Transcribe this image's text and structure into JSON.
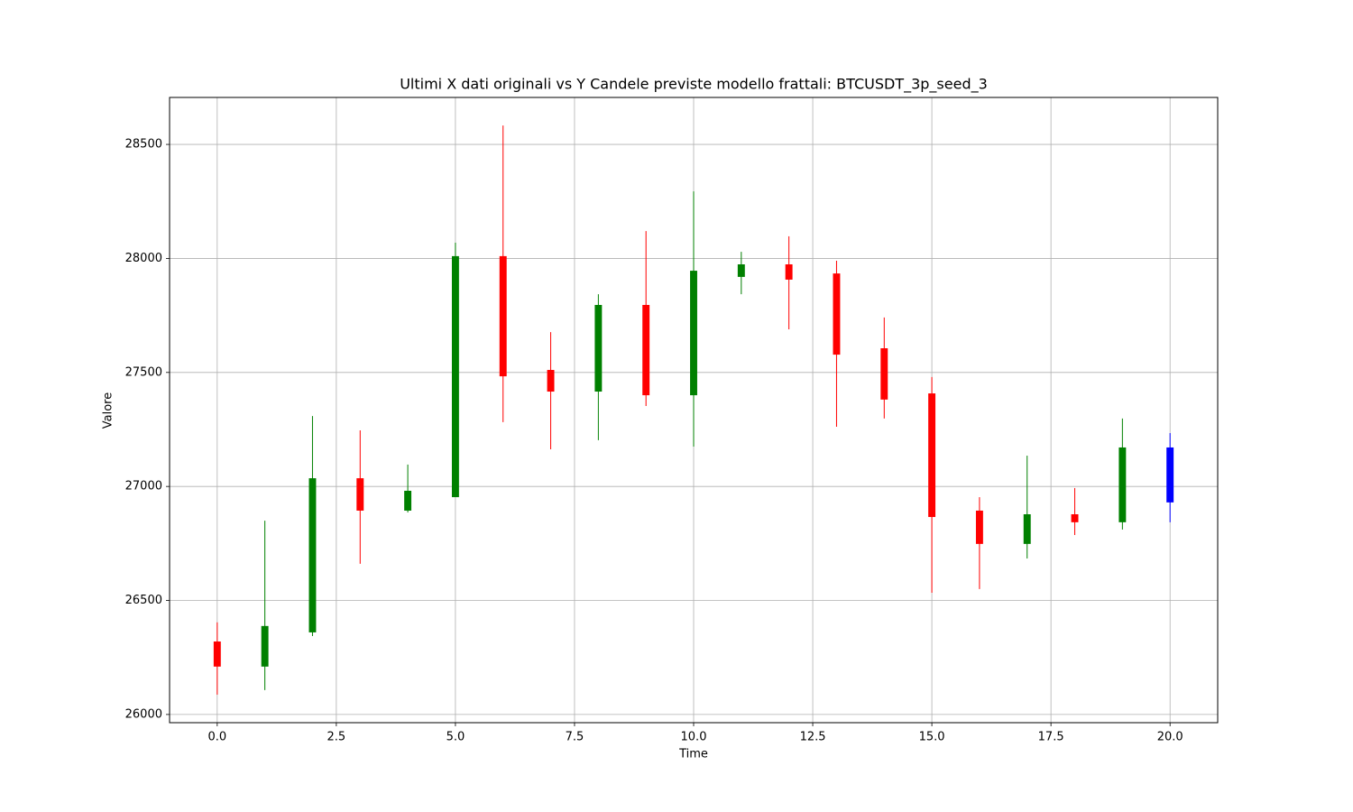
{
  "chart_data": {
    "type": "candlestick",
    "title": "Ultimi X dati originali vs Y Candele previste modello frattali: BTCUSDT_3p_seed_3",
    "xlabel": "Time",
    "ylabel": "Valore",
    "x": [
      0,
      1,
      2,
      3,
      4,
      5,
      6,
      7,
      8,
      9,
      10,
      11,
      12,
      13,
      14,
      15,
      16,
      17,
      18,
      19,
      20
    ],
    "open": [
      26320,
      26210,
      26360,
      27036,
      26894,
      26953,
      28010,
      27511,
      27416,
      27796,
      27400,
      27919,
      27974,
      27934,
      27606,
      27408,
      26894,
      26748,
      26878,
      26843,
      26930
    ],
    "high": [
      26404,
      26850,
      27309,
      27246,
      27096,
      28069,
      28583,
      27677,
      27843,
      28120,
      28294,
      28029,
      28097,
      27990,
      27741,
      27480,
      26953,
      27135,
      26993,
      27298,
      27234
    ],
    "low": [
      26087,
      26107,
      26344,
      26661,
      26886,
      26953,
      27282,
      27163,
      27203,
      27353,
      27175,
      27843,
      27689,
      27262,
      27298,
      26534,
      26550,
      26684,
      26787,
      26811,
      26843
    ],
    "close": [
      26210,
      26388,
      27036,
      26894,
      26981,
      28010,
      27483,
      27416,
      27796,
      27400,
      27946,
      27974,
      27907,
      27578,
      27381,
      26866,
      26748,
      26878,
      26843,
      27171,
      27171
    ],
    "colors": [
      "red",
      "green",
      "green",
      "red",
      "green",
      "green",
      "red",
      "red",
      "green",
      "red",
      "green",
      "green",
      "red",
      "red",
      "red",
      "red",
      "red",
      "green",
      "red",
      "green",
      "blue"
    ],
    "xlim": [
      -1,
      21
    ],
    "ylim": [
      25964,
      28706
    ],
    "xticks": [
      {
        "value": 0,
        "label": "0.0"
      },
      2.5,
      {
        "value": 5,
        "label": "5.0"
      },
      7.5,
      {
        "value": 10,
        "label": "10.0"
      },
      12.5,
      {
        "value": 15,
        "label": "15.0"
      },
      17.5,
      {
        "value": 20,
        "label": "20.0"
      }
    ],
    "yticks": [
      26000,
      26500,
      27000,
      27500,
      28000,
      28500
    ],
    "grid": true
  }
}
